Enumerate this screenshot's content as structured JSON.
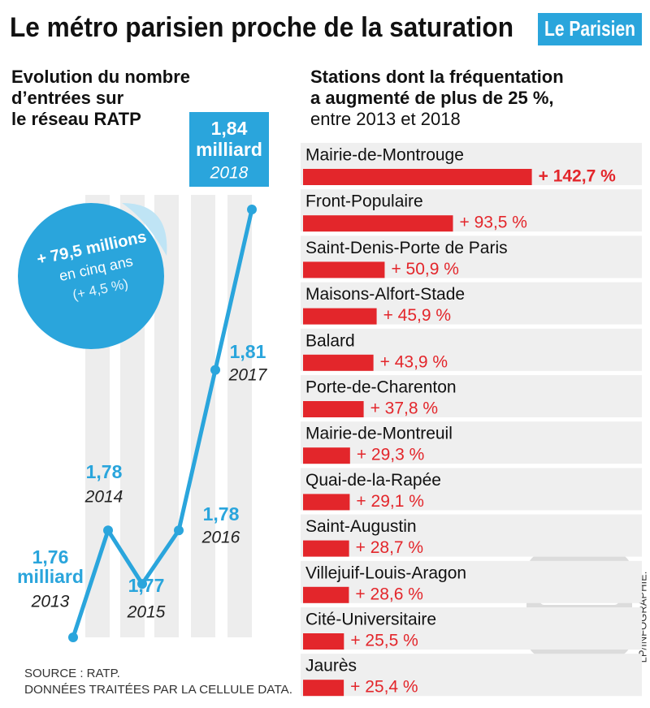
{
  "header": {
    "title": "Le métro parisien proche de la saturation",
    "logo": "Le Parisien"
  },
  "chart_data": [
    {
      "type": "line",
      "subtitle": [
        "Evolution du nombre",
        "d’entrées sur",
        "le réseau RATP"
      ],
      "categories": [
        "2013",
        "2014",
        "2015",
        "2016",
        "2017",
        "2018"
      ],
      "values": [
        1.76,
        1.78,
        1.77,
        1.78,
        1.81,
        1.84
      ],
      "value_labels": [
        "1,76",
        "1,78",
        "1,77",
        "1,78",
        "1,81",
        "1,84"
      ],
      "unit_label": "milliard",
      "color": "#2aa5dc",
      "ylim": [
        1.76,
        1.84
      ],
      "sticker": [
        "+ 79,5 millions",
        "en cinq ans",
        "(+ 4,5 %)"
      ]
    },
    {
      "type": "hbar",
      "subtitle": [
        "Stations dont la fréquentation",
        "a augmenté de plus de 25 %,",
        "entre 2013 et 2018"
      ],
      "categories": [
        "Mairie-de-Montrouge",
        "Front-Populaire",
        "Saint-Denis-Porte de Paris",
        "Maisons-Alfort-Stade",
        "Balard",
        "Porte-de-Charenton",
        "Mairie-de-Montreuil",
        "Quai-de-la-Rapée",
        "Saint-Augustin",
        "Villejuif-Louis-Aragon",
        "Cité-Universitaire",
        "Jaurès"
      ],
      "values": [
        142.7,
        93.5,
        50.9,
        45.9,
        43.9,
        37.8,
        29.3,
        29.1,
        28.7,
        28.6,
        25.5,
        25.4
      ],
      "value_labels": [
        "+ 142,7 %",
        "+ 93,5 %",
        "+ 50,9 %",
        "+ 45,9 %",
        "+ 43,9 %",
        "+ 37,8 %",
        "+ 29,3 %",
        "+ 29,1 %",
        "+ 28,7 %",
        "+ 28,6 %",
        "+ 25,5 %",
        "+ 25,4 %"
      ],
      "color": "#e3262b",
      "xlim": [
        0,
        150
      ]
    }
  ],
  "footer": {
    "source": [
      "SOURCE : RATP.",
      "DONNÉES TRAITÉES PAR LA CELLULE DATA."
    ],
    "credit": "LP/INFOGRAPHIE."
  }
}
